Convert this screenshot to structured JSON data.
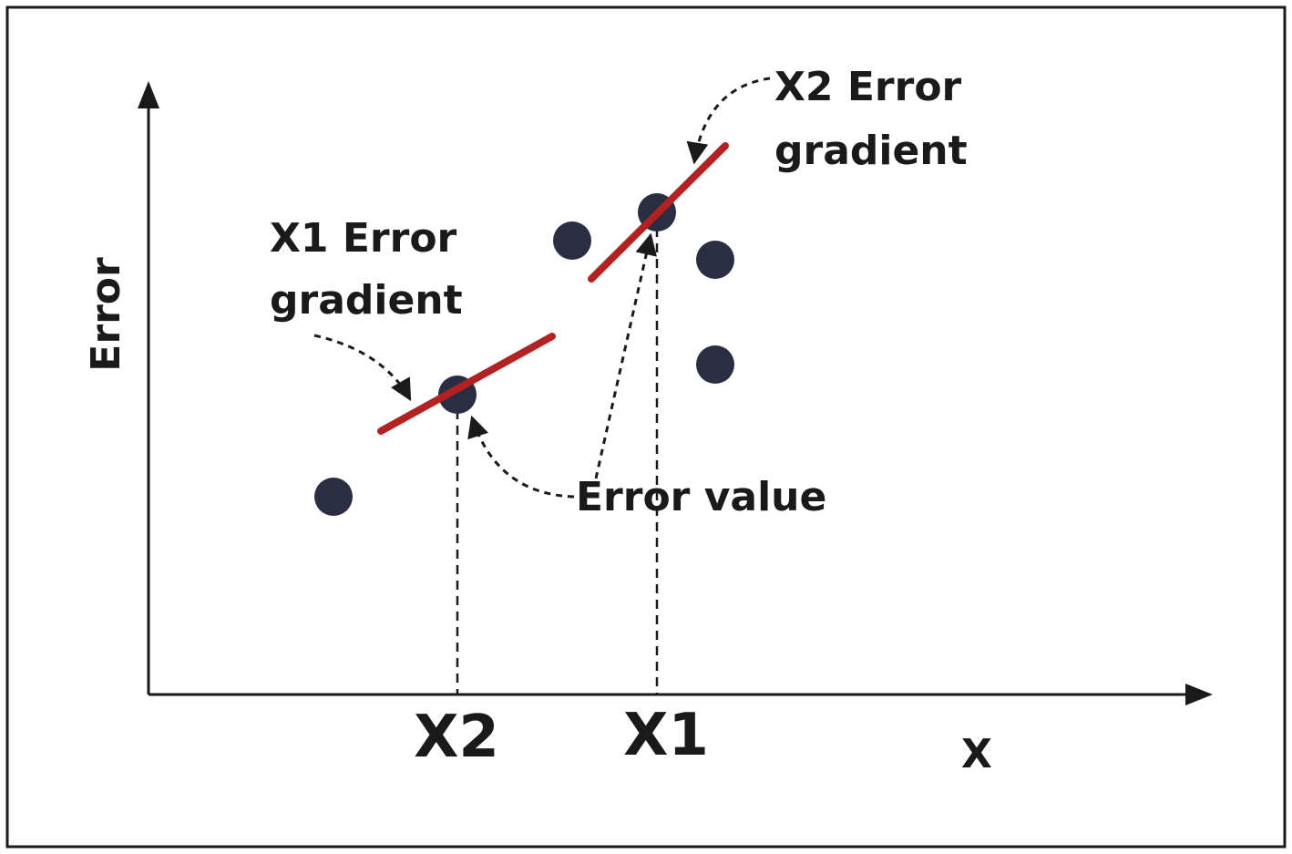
{
  "axes": {
    "y_label": "Error",
    "x_label": "X"
  },
  "ticks": {
    "x1": "X1",
    "x2": "X2"
  },
  "annotations": {
    "x1_gradient_line1": "X1 Error",
    "x1_gradient_line2": "gradient",
    "x2_gradient_line1": "X2 Error",
    "x2_gradient_line2": "gradient",
    "error_value": "Error value"
  },
  "colors": {
    "gradient_line": "#b22222",
    "point": "#2b2d42",
    "ink": "#1a1a1a"
  }
}
